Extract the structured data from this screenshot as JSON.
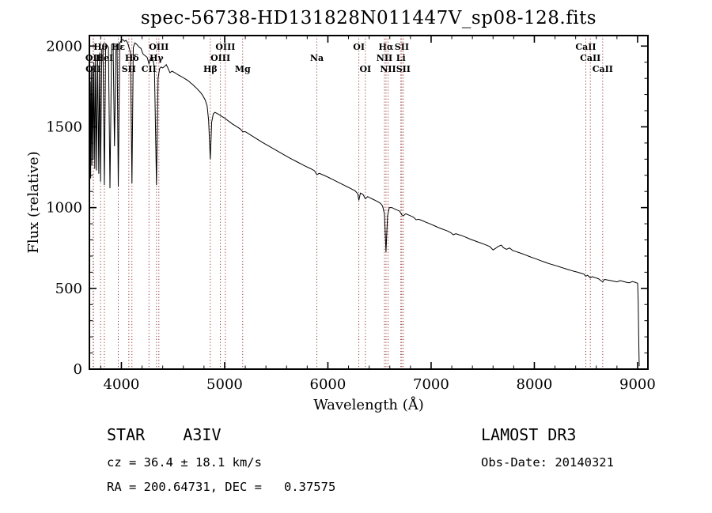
{
  "title": "spec-56738-HD131828N011447V_sp08-128.fits",
  "chart_data": {
    "type": "line",
    "title": "spec-56738-HD131828N011447V_sp08-128.fits",
    "xlabel": "Wavelength (Å)",
    "ylabel": "Flux (relative)",
    "xlim": [
      3690,
      9100
    ],
    "ylim": [
      0,
      2065
    ],
    "x_ticks": [
      4000,
      5000,
      6000,
      7000,
      8000,
      9000
    ],
    "y_ticks": [
      0,
      500,
      1000,
      1500,
      2000
    ],
    "x_tick_step": 1000,
    "x_minor_step": 200,
    "y_tick_step": 500,
    "y_minor_step": 100,
    "grid": false,
    "legend": "none",
    "line_color": "#000000",
    "marker_color": "#8b2222",
    "line_markers": [
      {
        "label": "Hθ",
        "wavelength": 3798,
        "row": 1
      },
      {
        "label": "Hε",
        "wavelength": 3970,
        "row": 1
      },
      {
        "label": "OIII",
        "wavelength": 4363,
        "row": 1
      },
      {
        "label": "OIII",
        "wavelength": 5007,
        "row": 1
      },
      {
        "label": "OI",
        "wavelength": 6300,
        "row": 1
      },
      {
        "label": "Hα",
        "wavelength": 6563,
        "row": 1
      },
      {
        "label": "SII",
        "wavelength": 6716,
        "row": 1
      },
      {
        "label": "CaII",
        "wavelength": 8498,
        "row": 1
      },
      {
        "label": "OII",
        "wavelength": 3727,
        "row": 2
      },
      {
        "label": "HeI",
        "wavelength": 3835,
        "row": 2
      },
      {
        "label": "Hδ",
        "wavelength": 4102,
        "row": 2
      },
      {
        "label": "Hγ",
        "wavelength": 4340,
        "row": 2
      },
      {
        "label": "OIII",
        "wavelength": 4959,
        "row": 2
      },
      {
        "label": "Na",
        "wavelength": 5893,
        "row": 2
      },
      {
        "label": "NII",
        "wavelength": 6548,
        "row": 2
      },
      {
        "label": "Li",
        "wavelength": 6707,
        "row": 2
      },
      {
        "label": "CaII",
        "wavelength": 8542,
        "row": 2
      },
      {
        "label": "OII",
        "wavelength": 3729,
        "row": 3
      },
      {
        "label": "SII",
        "wavelength": 4072,
        "row": 3
      },
      {
        "label": "CII",
        "wavelength": 4267,
        "row": 3
      },
      {
        "label": "Hβ",
        "wavelength": 4861,
        "row": 3
      },
      {
        "label": "Mg",
        "wavelength": 5175,
        "row": 3
      },
      {
        "label": "OI",
        "wavelength": 6363,
        "row": 3
      },
      {
        "label": "NII",
        "wavelength": 6583,
        "row": 3
      },
      {
        "label": "SII",
        "wavelength": 6731,
        "row": 3
      },
      {
        "label": "CaII",
        "wavelength": 8662,
        "row": 3
      }
    ],
    "series": [
      {
        "name": "flux",
        "points": [
          [
            3692,
            1120
          ],
          [
            3697,
            1780
          ],
          [
            3702,
            1180
          ],
          [
            3708,
            1850
          ],
          [
            3714,
            1260
          ],
          [
            3721,
            1880
          ],
          [
            3727,
            1300
          ],
          [
            3734,
            1900
          ],
          [
            3742,
            1240
          ],
          [
            3750,
            1920
          ],
          [
            3759,
            1230
          ],
          [
            3770,
            1940
          ],
          [
            3781,
            1210
          ],
          [
            3790,
            1960
          ],
          [
            3798,
            1160
          ],
          [
            3810,
            1980
          ],
          [
            3822,
            1990
          ],
          [
            3835,
            1140
          ],
          [
            3848,
            2000
          ],
          [
            3862,
            2005
          ],
          [
            3875,
            1990
          ],
          [
            3889,
            1120
          ],
          [
            3905,
            2010
          ],
          [
            3920,
            2015
          ],
          [
            3933,
            1380
          ],
          [
            3948,
            2010
          ],
          [
            3958,
            2000
          ],
          [
            3970,
            1130
          ],
          [
            3984,
            2020
          ],
          [
            4000,
            2035
          ],
          [
            4015,
            2040
          ],
          [
            4030,
            2030
          ],
          [
            4045,
            2035
          ],
          [
            4060,
            2020
          ],
          [
            4075,
            1990
          ],
          [
            4088,
            1960
          ],
          [
            4102,
            1150
          ],
          [
            4115,
            1990
          ],
          [
            4130,
            2020
          ],
          [
            4150,
            2010
          ],
          [
            4170,
            1995
          ],
          [
            4190,
            1985
          ],
          [
            4210,
            1950
          ],
          [
            4230,
            1940
          ],
          [
            4250,
            1930
          ],
          [
            4267,
            1890
          ],
          [
            4285,
            1928
          ],
          [
            4300,
            1930
          ],
          [
            4320,
            1870
          ],
          [
            4340,
            1140
          ],
          [
            4355,
            1800
          ],
          [
            4370,
            1860
          ],
          [
            4385,
            1870
          ],
          [
            4400,
            1865
          ],
          [
            4420,
            1875
          ],
          [
            4435,
            1885
          ],
          [
            4450,
            1865
          ],
          [
            4470,
            1835
          ],
          [
            4490,
            1845
          ],
          [
            4510,
            1838
          ],
          [
            4530,
            1830
          ],
          [
            4550,
            1822
          ],
          [
            4570,
            1815
          ],
          [
            4590,
            1808
          ],
          [
            4610,
            1800
          ],
          [
            4630,
            1792
          ],
          [
            4650,
            1784
          ],
          [
            4670,
            1772
          ],
          [
            4690,
            1762
          ],
          [
            4710,
            1750
          ],
          [
            4730,
            1738
          ],
          [
            4750,
            1724
          ],
          [
            4770,
            1710
          ],
          [
            4790,
            1692
          ],
          [
            4810,
            1668
          ],
          [
            4830,
            1630
          ],
          [
            4845,
            1540
          ],
          [
            4861,
            1300
          ],
          [
            4875,
            1530
          ],
          [
            4890,
            1580
          ],
          [
            4905,
            1590
          ],
          [
            4920,
            1585
          ],
          [
            4940,
            1578
          ],
          [
            4960,
            1570
          ],
          [
            4980,
            1562
          ],
          [
            5000,
            1554
          ],
          [
            5025,
            1542
          ],
          [
            5050,
            1530
          ],
          [
            5075,
            1518
          ],
          [
            5100,
            1508
          ],
          [
            5125,
            1498
          ],
          [
            5150,
            1488
          ],
          [
            5175,
            1470
          ],
          [
            5200,
            1470
          ],
          [
            5225,
            1460
          ],
          [
            5250,
            1450
          ],
          [
            5275,
            1440
          ],
          [
            5300,
            1430
          ],
          [
            5330,
            1418
          ],
          [
            5360,
            1406
          ],
          [
            5390,
            1395
          ],
          [
            5420,
            1384
          ],
          [
            5450,
            1373
          ],
          [
            5480,
            1362
          ],
          [
            5510,
            1351
          ],
          [
            5540,
            1340
          ],
          [
            5570,
            1329
          ],
          [
            5600,
            1318
          ],
          [
            5630,
            1307
          ],
          [
            5660,
            1297
          ],
          [
            5690,
            1287
          ],
          [
            5720,
            1277
          ],
          [
            5750,
            1267
          ],
          [
            5780,
            1257
          ],
          [
            5810,
            1248
          ],
          [
            5840,
            1239
          ],
          [
            5870,
            1228
          ],
          [
            5893,
            1204
          ],
          [
            5915,
            1212
          ],
          [
            5940,
            1206
          ],
          [
            5965,
            1199
          ],
          [
            5990,
            1192
          ],
          [
            6015,
            1184
          ],
          [
            6040,
            1176
          ],
          [
            6065,
            1168
          ],
          [
            6090,
            1160
          ],
          [
            6115,
            1152
          ],
          [
            6140,
            1144
          ],
          [
            6165,
            1136
          ],
          [
            6190,
            1128
          ],
          [
            6215,
            1120
          ],
          [
            6240,
            1112
          ],
          [
            6265,
            1104
          ],
          [
            6290,
            1085
          ],
          [
            6300,
            1045
          ],
          [
            6315,
            1090
          ],
          [
            6340,
            1082
          ],
          [
            6363,
            1055
          ],
          [
            6385,
            1068
          ],
          [
            6410,
            1060
          ],
          [
            6435,
            1052
          ],
          [
            6460,
            1044
          ],
          [
            6485,
            1036
          ],
          [
            6510,
            1026
          ],
          [
            6530,
            1010
          ],
          [
            6548,
            960
          ],
          [
            6563,
            725
          ],
          [
            6578,
            950
          ],
          [
            6595,
            1000
          ],
          [
            6620,
            1000
          ],
          [
            6645,
            992
          ],
          [
            6670,
            985
          ],
          [
            6695,
            978
          ],
          [
            6716,
            955
          ],
          [
            6731,
            950
          ],
          [
            6755,
            962
          ],
          [
            6780,
            955
          ],
          [
            6805,
            948
          ],
          [
            6830,
            940
          ],
          [
            6855,
            925
          ],
          [
            6880,
            928
          ],
          [
            6905,
            922
          ],
          [
            6930,
            915
          ],
          [
            6955,
            908
          ],
          [
            6980,
            902
          ],
          [
            7005,
            895
          ],
          [
            7030,
            888
          ],
          [
            7055,
            881
          ],
          [
            7080,
            874
          ],
          [
            7105,
            868
          ],
          [
            7130,
            862
          ],
          [
            7160,
            855
          ],
          [
            7190,
            845
          ],
          [
            7215,
            832
          ],
          [
            7240,
            838
          ],
          [
            7270,
            832
          ],
          [
            7300,
            826
          ],
          [
            7330,
            818
          ],
          [
            7360,
            810
          ],
          [
            7390,
            802
          ],
          [
            7420,
            795
          ],
          [
            7450,
            788
          ],
          [
            7480,
            781
          ],
          [
            7510,
            774
          ],
          [
            7540,
            767
          ],
          [
            7570,
            758
          ],
          [
            7600,
            738
          ],
          [
            7625,
            748
          ],
          [
            7650,
            760
          ],
          [
            7680,
            768
          ],
          [
            7700,
            752
          ],
          [
            7730,
            742
          ],
          [
            7760,
            750
          ],
          [
            7790,
            735
          ],
          [
            7820,
            728
          ],
          [
            7850,
            722
          ],
          [
            7880,
            715
          ],
          [
            7910,
            708
          ],
          [
            7940,
            700
          ],
          [
            7970,
            693
          ],
          [
            8000,
            686
          ],
          [
            8030,
            679
          ],
          [
            8060,
            672
          ],
          [
            8090,
            665
          ],
          [
            8120,
            658
          ],
          [
            8150,
            652
          ],
          [
            8180,
            646
          ],
          [
            8210,
            640
          ],
          [
            8240,
            634
          ],
          [
            8270,
            628
          ],
          [
            8300,
            622
          ],
          [
            8330,
            616
          ],
          [
            8360,
            610
          ],
          [
            8390,
            605
          ],
          [
            8420,
            600
          ],
          [
            8450,
            594
          ],
          [
            8480,
            588
          ],
          [
            8498,
            575
          ],
          [
            8515,
            582
          ],
          [
            8542,
            565
          ],
          [
            8560,
            572
          ],
          [
            8590,
            566
          ],
          [
            8620,
            560
          ],
          [
            8662,
            540
          ],
          [
            8680,
            556
          ],
          [
            8710,
            552
          ],
          [
            8740,
            548
          ],
          [
            8770,
            544
          ],
          [
            8800,
            540
          ],
          [
            8830,
            548
          ],
          [
            8860,
            543
          ],
          [
            8890,
            538
          ],
          [
            8920,
            535
          ],
          [
            8950,
            542
          ],
          [
            8975,
            538
          ],
          [
            9000,
            532
          ],
          [
            9006,
            420
          ],
          [
            9012,
            150
          ],
          [
            9016,
            18
          ]
        ]
      }
    ]
  },
  "footer": {
    "class_label": "STAR    A3IV",
    "survey": "LAMOST DR3",
    "cz": "cz = 36.4 ± 18.1 km/s",
    "obs_date": "Obs-Date: 20140321",
    "coords": "RA = 200.64731, DEC =   0.37575"
  }
}
